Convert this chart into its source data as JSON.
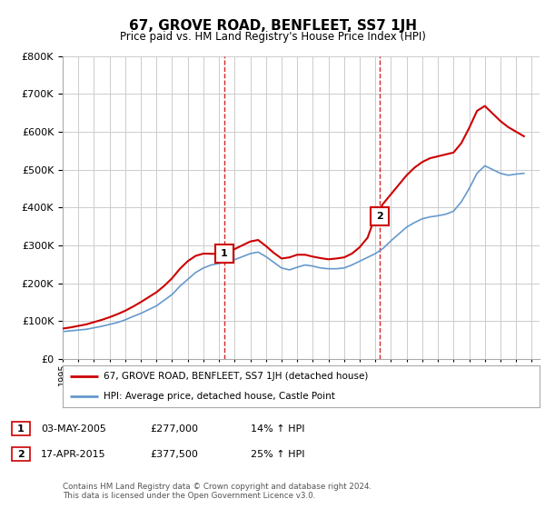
{
  "title": "67, GROVE ROAD, BENFLEET, SS7 1JH",
  "subtitle": "Price paid vs. HM Land Registry's House Price Index (HPI)",
  "legend_line1": "67, GROVE ROAD, BENFLEET, SS7 1JH (detached house)",
  "legend_line2": "HPI: Average price, detached house, Castle Point",
  "sale1_label": "1",
  "sale1_date": "03-MAY-2005",
  "sale1_price": "£277,000",
  "sale1_hpi": "14% ↑ HPI",
  "sale1_year": 2005.33,
  "sale1_value": 277000,
  "sale2_label": "2",
  "sale2_date": "17-APR-2015",
  "sale2_price": "£377,500",
  "sale2_hpi": "25% ↑ HPI",
  "sale2_year": 2015.29,
  "sale2_value": 377500,
  "footer": "Contains HM Land Registry data © Crown copyright and database right 2024.\nThis data is licensed under the Open Government Licence v3.0.",
  "price_line_color": "#cc0000",
  "hpi_line_color": "#6699cc",
  "vline_color": "#cc0000",
  "ylim": [
    0,
    800000
  ],
  "xlim_start": 1995,
  "xlim_end": 2025.5,
  "background_color": "#ffffff",
  "grid_color": "#cccccc"
}
